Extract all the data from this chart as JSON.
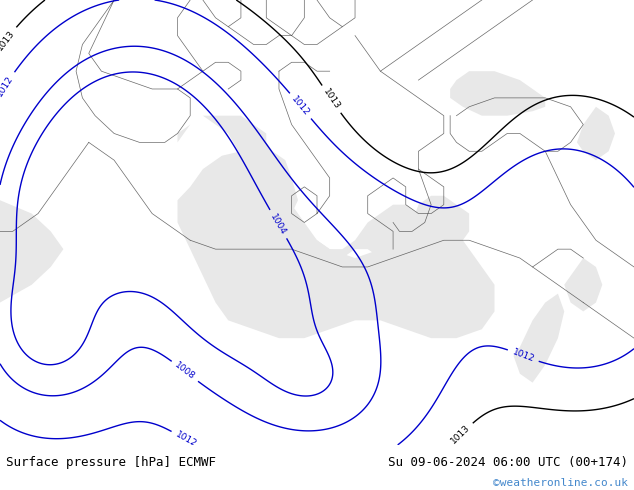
{
  "title_left": "Surface pressure [hPa] ECMWF",
  "title_right": "Su 09-06-2024 06:00 UTC (00+174)",
  "watermark": "©weatheronline.co.uk",
  "land_color": "#b8e890",
  "sea_color": "#e8e8e8",
  "contour_color": "#0000cc",
  "border_color": "#888888",
  "coast_color": "#444444",
  "black_contour_color": "#000000",
  "label_color": "#0000bb",
  "text_color": "#000000",
  "watermark_color": "#4488cc",
  "bottom_bar_color": "#ffffff",
  "figsize": [
    6.34,
    4.9
  ],
  "dpi": 100,
  "font_size_labels": 9,
  "font_size_watermark": 8
}
